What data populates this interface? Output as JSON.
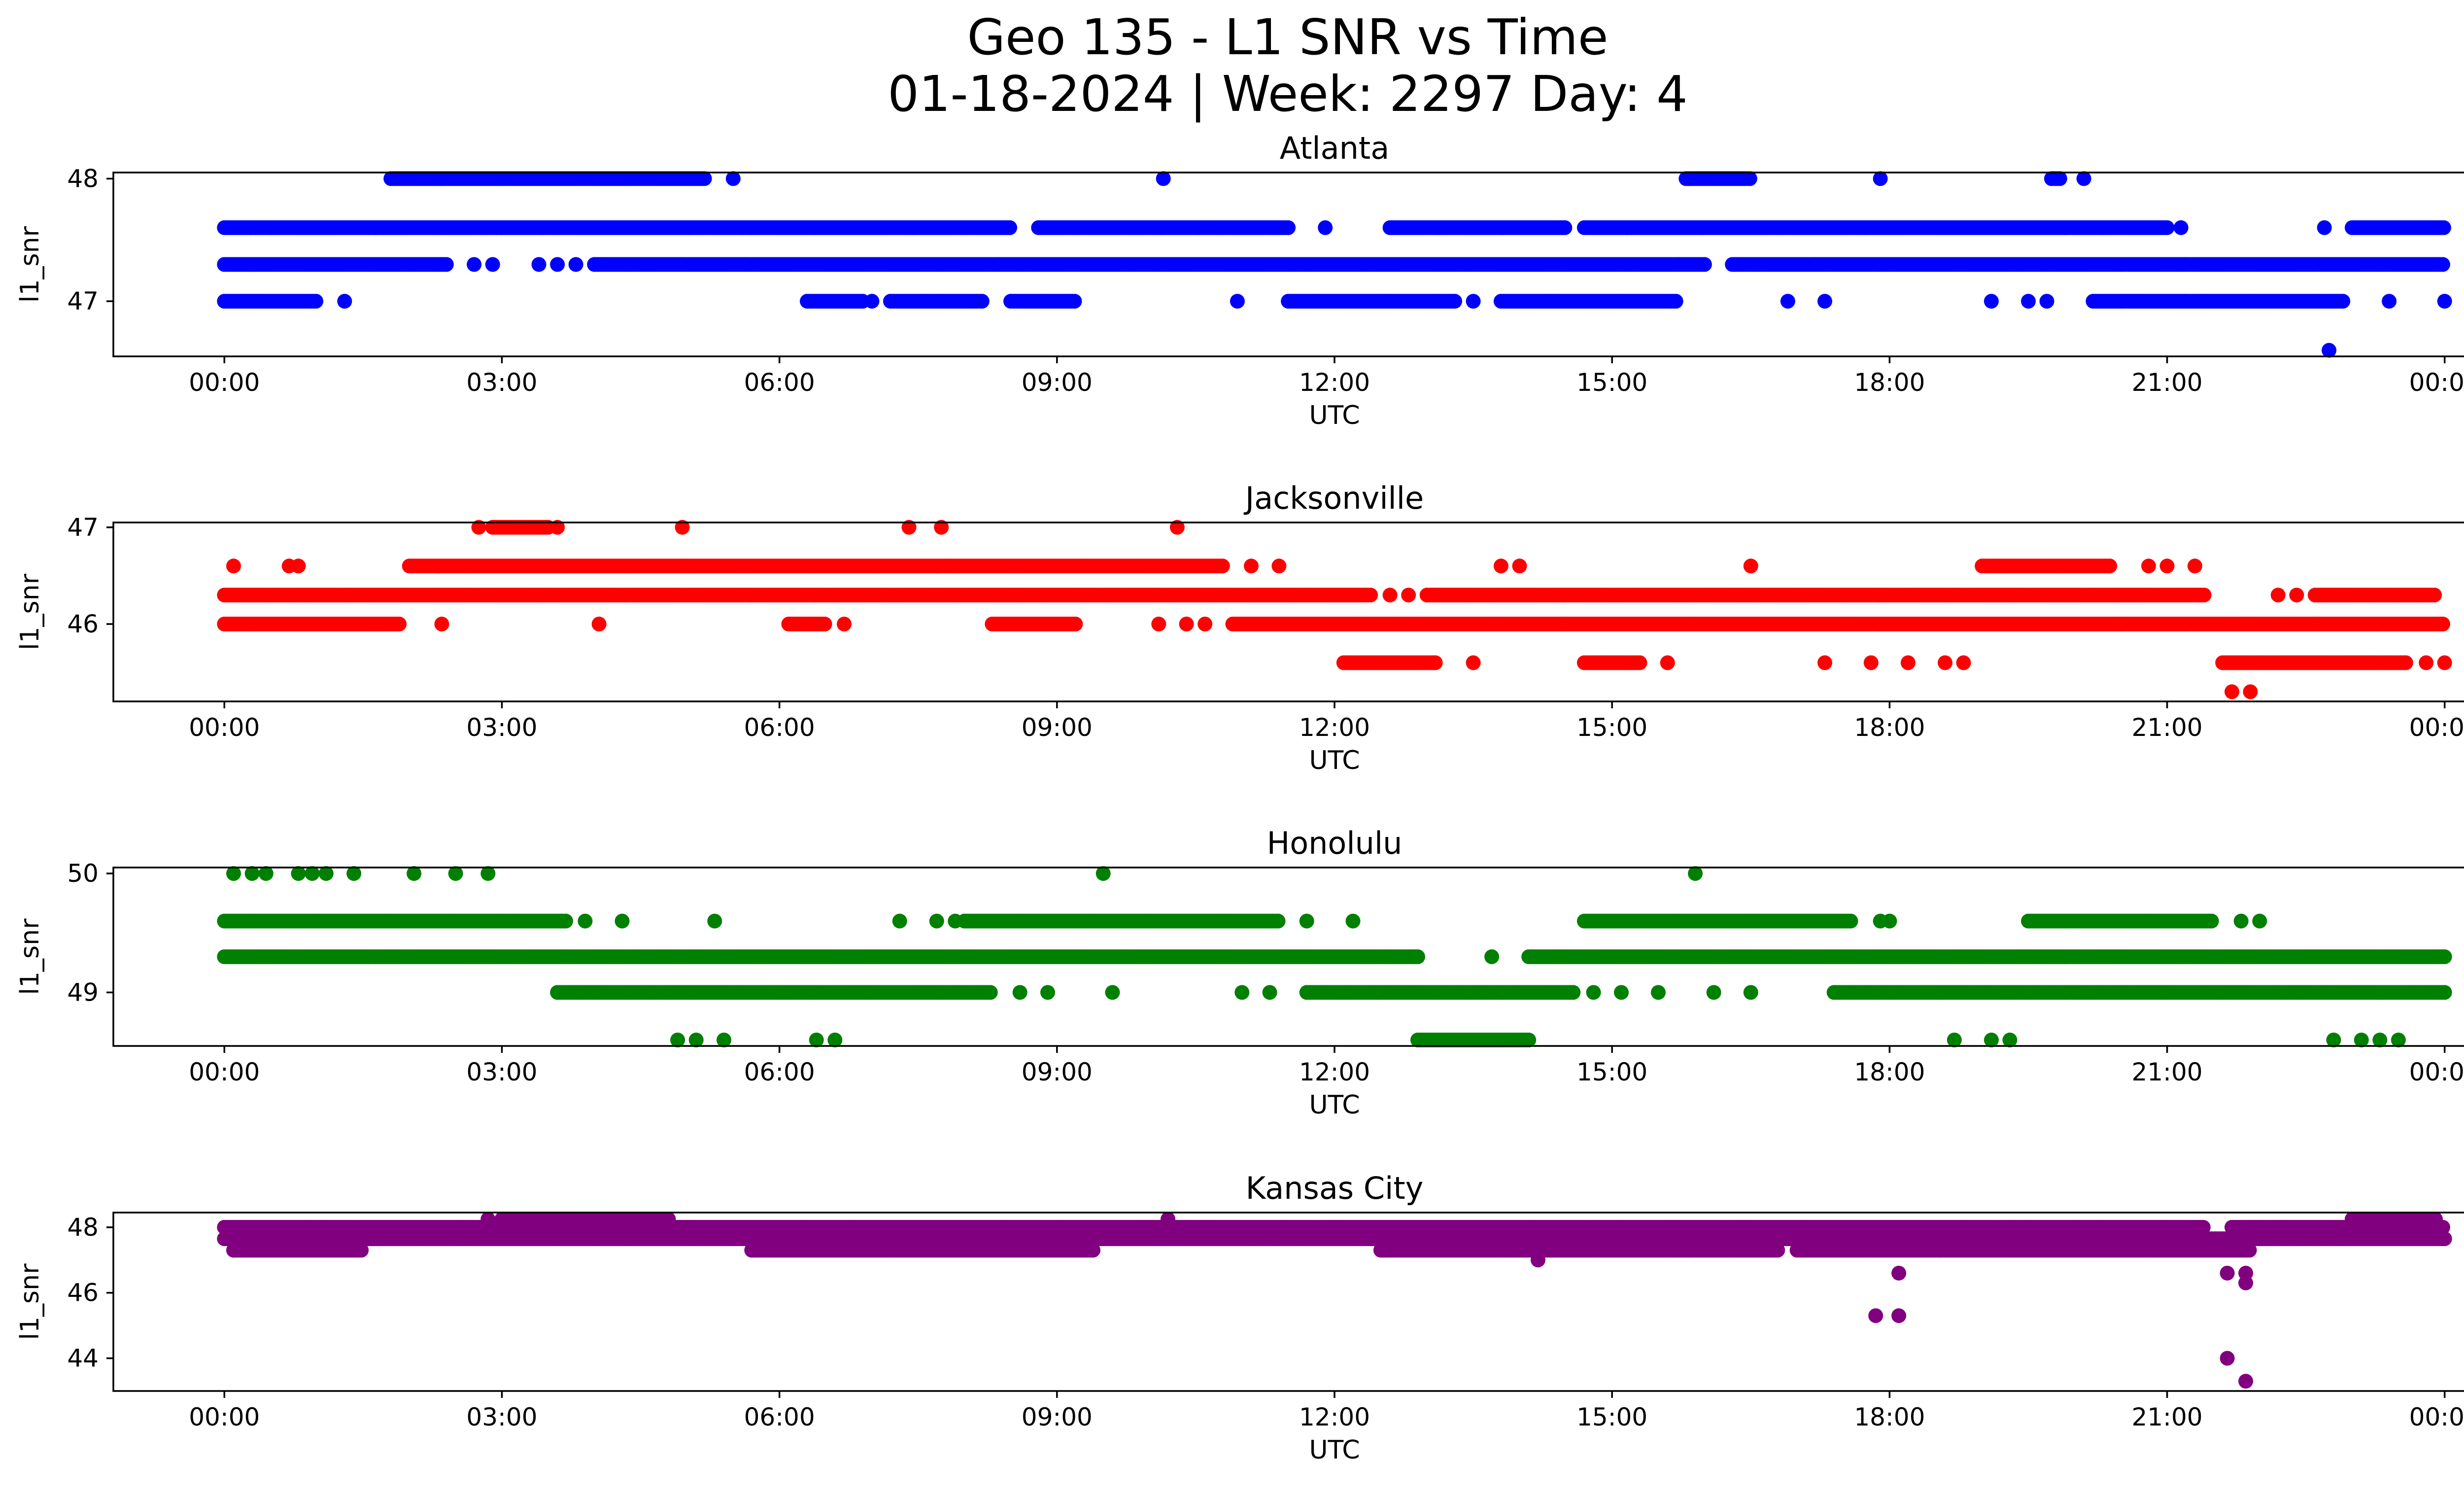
{
  "figure": {
    "title_line1": "Geo 135 - L1 SNR vs Time",
    "title_line2": "01-18-2024 | Week: 2297 Day: 4"
  },
  "chart_data": [
    {
      "type": "scatter",
      "title": "Atlanta",
      "xlabel": "UTC",
      "ylabel": "l1_snr",
      "color": "#0000ff",
      "xlim_hours": [
        -1.2,
        25.2
      ],
      "ylim": [
        46.55,
        48.05
      ],
      "xticks": [
        "00:00",
        "03:00",
        "06:00",
        "09:00",
        "12:00",
        "15:00",
        "18:00",
        "21:00",
        "00:00"
      ],
      "yticks": [
        47,
        48
      ],
      "levels": [
        {
          "y": 48.0,
          "ranges": [
            [
              1.8,
              5.2
            ],
            [
              15.8,
              16.5
            ],
            [
              19.75,
              19.85
            ]
          ],
          "points": [
            5.5,
            10.15,
            17.9,
            20.1
          ]
        },
        {
          "y": 47.6,
          "ranges": [
            [
              0.0,
              8.5
            ],
            [
              8.8,
              11.5
            ],
            [
              12.6,
              14.5
            ],
            [
              14.7,
              21.0
            ],
            [
              23.0,
              24.0
            ]
          ],
          "points": [
            11.9,
            21.15,
            22.7
          ]
        },
        {
          "y": 47.3,
          "ranges": [
            [
              0.0,
              2.4
            ],
            [
              4.0,
              16.0
            ],
            [
              16.3,
              24.0
            ]
          ],
          "points": [
            2.7,
            2.9,
            3.4,
            3.6,
            3.8
          ]
        },
        {
          "y": 47.0,
          "ranges": [
            [
              0.0,
              1.0
            ],
            [
              6.3,
              6.9
            ],
            [
              7.2,
              8.2
            ],
            [
              8.5,
              9.2
            ],
            [
              11.5,
              13.3
            ],
            [
              13.8,
              15.7
            ],
            [
              20.2,
              22.9
            ]
          ],
          "points": [
            1.3,
            7.0,
            10.95,
            13.5,
            16.9,
            17.3,
            19.1,
            19.5,
            19.7,
            23.4,
            24.0
          ]
        },
        {
          "y": 46.6,
          "ranges": [],
          "points": [
            22.75
          ]
        }
      ]
    },
    {
      "type": "scatter",
      "title": "Jacksonville",
      "xlabel": "UTC",
      "ylabel": "l1_snr",
      "color": "#ff0000",
      "xlim_hours": [
        -1.2,
        25.2
      ],
      "ylim": [
        45.2,
        47.05
      ],
      "xticks": [
        "00:00",
        "03:00",
        "06:00",
        "09:00",
        "12:00",
        "15:00",
        "18:00",
        "21:00",
        "00:00"
      ],
      "yticks": [
        46,
        47
      ],
      "levels": [
        {
          "y": 47.0,
          "ranges": [
            [
              2.9,
              3.5
            ]
          ],
          "points": [
            2.75,
            3.6,
            4.95,
            7.4,
            7.75,
            10.3
          ]
        },
        {
          "y": 46.6,
          "ranges": [
            [
              2.0,
              10.8
            ],
            [
              19.0,
              20.4
            ]
          ],
          "points": [
            0.1,
            0.7,
            0.8,
            11.1,
            11.4,
            13.8,
            14.0,
            16.5,
            20.8,
            21.0,
            21.3
          ]
        },
        {
          "y": 46.3,
          "ranges": [
            [
              0.0,
              12.4
            ],
            [
              13.0,
              21.4
            ],
            [
              22.6,
              23.9
            ]
          ],
          "points": [
            12.6,
            12.8,
            22.2,
            22.4
          ]
        },
        {
          "y": 46.0,
          "ranges": [
            [
              0.0,
              1.9
            ],
            [
              6.1,
              6.5
            ],
            [
              8.3,
              9.2
            ],
            [
              10.9,
              24.0
            ]
          ],
          "points": [
            2.35,
            4.05,
            6.7,
            10.1,
            10.4,
            10.6
          ]
        },
        {
          "y": 45.6,
          "ranges": [
            [
              12.1,
              13.1
            ],
            [
              14.7,
              15.3
            ],
            [
              21.6,
              23.6
            ]
          ],
          "points": [
            13.5,
            15.6,
            17.3,
            17.8,
            18.2,
            18.6,
            18.8,
            23.8,
            24.0
          ]
        },
        {
          "y": 45.3,
          "ranges": [],
          "points": [
            21.7,
            21.9
          ]
        }
      ]
    },
    {
      "type": "scatter",
      "title": "Honolulu",
      "xlabel": "UTC",
      "ylabel": "l1_snr",
      "color": "#008000",
      "xlim_hours": [
        -1.2,
        25.2
      ],
      "ylim": [
        48.55,
        50.05
      ],
      "xticks": [
        "00:00",
        "03:00",
        "06:00",
        "09:00",
        "12:00",
        "15:00",
        "18:00",
        "21:00",
        "00:00"
      ],
      "yticks": [
        49,
        50
      ],
      "levels": [
        {
          "y": 50.0,
          "ranges": [],
          "points": [
            0.1,
            0.3,
            0.45,
            0.8,
            0.95,
            1.1,
            1.4,
            2.05,
            2.5,
            2.85,
            9.5,
            15.9
          ]
        },
        {
          "y": 49.6,
          "ranges": [
            [
              0.0,
              3.7
            ],
            [
              8.0,
              11.4
            ],
            [
              14.7,
              17.6
            ],
            [
              19.5,
              21.5
            ]
          ],
          "points": [
            3.9,
            4.3,
            5.3,
            7.3,
            7.7,
            7.9,
            11.7,
            12.2,
            17.9,
            18.0,
            21.8,
            22.0
          ]
        },
        {
          "y": 49.3,
          "ranges": [
            [
              0.0,
              12.9
            ],
            [
              14.1,
              24.0
            ]
          ],
          "points": [
            13.7
          ]
        },
        {
          "y": 49.0,
          "ranges": [
            [
              3.6,
              8.3
            ],
            [
              11.7,
              14.6
            ],
            [
              17.4,
              24.0
            ]
          ],
          "points": [
            8.6,
            8.9,
            9.6,
            11.0,
            11.3,
            14.8,
            15.1,
            15.5,
            16.1,
            16.5
          ]
        },
        {
          "y": 48.6,
          "ranges": [
            [
              12.9,
              14.1
            ]
          ],
          "points": [
            4.9,
            5.1,
            5.4,
            6.4,
            6.6,
            18.7,
            19.1,
            19.3,
            22.8,
            23.1,
            23.3,
            23.5
          ]
        }
      ]
    },
    {
      "type": "scatter",
      "title": "Kansas City",
      "xlabel": "UTC",
      "ylabel": "l1_snr",
      "color": "#800080",
      "xlim_hours": [
        -1.2,
        25.2
      ],
      "ylim": [
        43.0,
        48.45
      ],
      "xticks": [
        "00:00",
        "03:00",
        "06:00",
        "09:00",
        "12:00",
        "15:00",
        "18:00",
        "21:00",
        "00:00"
      ],
      "yticks": [
        44,
        46,
        48
      ],
      "levels": [
        {
          "y": 48.25,
          "ranges": [
            [
              3.0,
              4.8
            ],
            [
              23.0,
              23.9
            ]
          ],
          "points": [
            2.85,
            10.2
          ]
        },
        {
          "y": 48.0,
          "ranges": [
            [
              0.0,
              21.4
            ],
            [
              21.7,
              24.0
            ]
          ],
          "points": []
        },
        {
          "y": 47.65,
          "ranges": [
            [
              0.0,
              24.0
            ]
          ],
          "points": []
        },
        {
          "y": 47.3,
          "ranges": [
            [
              0.1,
              1.5
            ],
            [
              5.7,
              9.4
            ],
            [
              12.5,
              16.8
            ],
            [
              17.0,
              21.9
            ]
          ],
          "points": [
            14.2
          ]
        },
        {
          "y": 47.0,
          "ranges": [],
          "points": [
            14.2
          ]
        },
        {
          "y": 46.6,
          "ranges": [],
          "points": [
            18.1,
            21.65,
            21.85
          ]
        },
        {
          "y": 46.3,
          "ranges": [],
          "points": [
            21.85
          ]
        },
        {
          "y": 45.3,
          "ranges": [],
          "points": [
            17.85,
            18.1
          ]
        },
        {
          "y": 44.0,
          "ranges": [],
          "points": [
            21.65
          ]
        },
        {
          "y": 43.3,
          "ranges": [],
          "points": [
            21.85
          ]
        }
      ]
    }
  ]
}
